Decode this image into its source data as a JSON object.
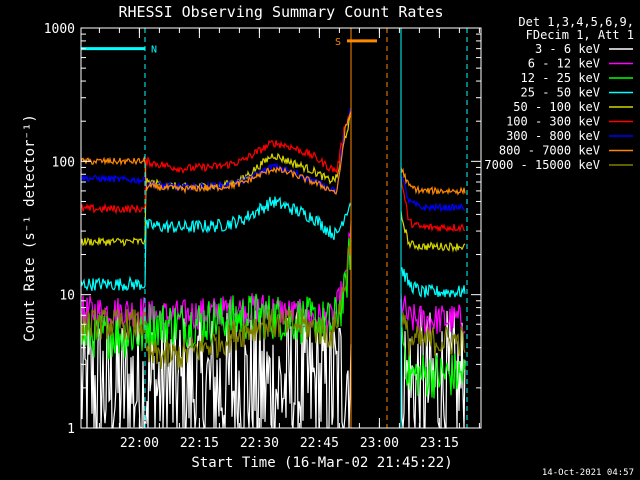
{
  "chart_data": {
    "type": "line",
    "title": "RHESSI Observing Summary Count Rates",
    "xlabel": "Start Time (16-Mar-02 21:45:22)",
    "ylabel": "Count Rate (s⁻¹ detector⁻¹)",
    "y_scale": "log",
    "ylim": [
      1,
      1000
    ],
    "y_ticks": [
      "1",
      "10",
      "100",
      "1000"
    ],
    "x_unit": "minutes after 21:45:22",
    "xlim": [
      0,
      100
    ],
    "x_ticks": [
      "22:00",
      "22:15",
      "22:30",
      "22:45",
      "23:00",
      "23:15"
    ],
    "x_tick_values": [
      14.6,
      29.6,
      44.6,
      59.6,
      74.6,
      89.6
    ],
    "legend_title_1": "Det 1,3,4,5,6,9,",
    "legend_title_2": "FDecim 1, Att 1",
    "legend_position": "right",
    "timestamp": "14-Oct-2021 04:57",
    "markers": [
      {
        "label": "N",
        "color": "#00ffff",
        "x_start": 0,
        "x_end": 16.0,
        "level": 700
      },
      {
        "label": "S",
        "color": "#ff8800",
        "x_start": 66.5,
        "x_end": 74.0,
        "level": 800
      }
    ],
    "vlines": [
      {
        "x": 16.0,
        "color": "#00ffff",
        "dashed": true
      },
      {
        "x": 67.5,
        "color": "#ff8800",
        "dashed": false
      },
      {
        "x": 76.5,
        "color": "#ff8800",
        "dashed": true
      },
      {
        "x": 80.0,
        "color": "#00ffff",
        "dashed": false
      },
      {
        "x": 96.5,
        "color": "#00ffff",
        "dashed": true
      }
    ],
    "gaps": [
      [
        67.6,
        79.9
      ]
    ],
    "series": [
      {
        "name": "3 - 6 keV",
        "color": "#ffffff",
        "x": [
          0,
          16.1,
          25,
          35,
          45,
          55,
          63,
          66,
          67.5,
          80,
          82,
          90,
          96
        ],
        "y": [
          2,
          2,
          2,
          2,
          2,
          2,
          2,
          2.5,
          3,
          3,
          2,
          2,
          2
        ],
        "noise": 0.6
      },
      {
        "name": "6 - 12 keV",
        "color": "#ff00ff",
        "x": [
          0,
          16,
          16.1,
          25,
          35,
          45,
          55,
          63,
          66,
          67.5,
          80,
          82,
          90,
          96
        ],
        "y": [
          7.5,
          7.5,
          7,
          7,
          7.5,
          8,
          7,
          6.5,
          12,
          30,
          9,
          6.5,
          6.5,
          6.5
        ],
        "noise": 0.12
      },
      {
        "name": "12 - 25 keV",
        "color": "#00ff00",
        "x": [
          0,
          16,
          16.1,
          25,
          35,
          45,
          55,
          63,
          66,
          67.5,
          80,
          82,
          90,
          96
        ],
        "y": [
          5,
          5,
          6,
          6,
          6.5,
          7,
          6.5,
          6,
          10,
          25,
          6,
          2.5,
          2.5,
          2.5
        ],
        "noise": 0.18
      },
      {
        "name": "25 - 50 keV",
        "color": "#00ffff",
        "x": [
          0,
          16,
          16.1,
          25,
          35,
          40,
          48,
          52,
          58,
          62,
          64,
          66,
          67.5,
          80,
          82,
          85,
          96
        ],
        "y": [
          12,
          12,
          33,
          32,
          33,
          36,
          50,
          45,
          38,
          30,
          28,
          40,
          50,
          16,
          12,
          10.5,
          10.5
        ],
        "noise": 0.05
      },
      {
        "name": "50 - 100 keV",
        "color": "#d4d400",
        "x": [
          0,
          16,
          16.1,
          25,
          35,
          40,
          48,
          52,
          58,
          62,
          64,
          66,
          67.5,
          80,
          82,
          85,
          96
        ],
        "y": [
          25,
          25,
          70,
          64,
          66,
          72,
          112,
          100,
          85,
          72,
          75,
          150,
          220,
          40,
          24,
          23,
          23
        ],
        "noise": 0.03
      },
      {
        "name": "100 - 300 keV",
        "color": "#ff0000",
        "x": [
          0,
          16,
          16.1,
          25,
          35,
          40,
          48,
          52,
          58,
          62,
          64,
          66,
          67.5,
          80,
          82,
          85,
          96
        ],
        "y": [
          44,
          44,
          100,
          88,
          92,
          100,
          138,
          130,
          110,
          90,
          85,
          190,
          230,
          75,
          35,
          32,
          32
        ],
        "noise": 0.03
      },
      {
        "name": "300 - 800 keV",
        "color": "#0000ff",
        "x": [
          0,
          16,
          16.1,
          25,
          35,
          40,
          48,
          52,
          58,
          62,
          64,
          66,
          67.5,
          80,
          82,
          85,
          96
        ],
        "y": [
          75,
          72,
          68,
          64,
          66,
          70,
          92,
          85,
          72,
          64,
          60,
          180,
          250,
          80,
          50,
          45,
          45
        ],
        "noise": 0.025
      },
      {
        "name": "800 - 7000 keV",
        "color": "#ff8800",
        "x": [
          0,
          16,
          16.1,
          25,
          35,
          40,
          48,
          52,
          58,
          62,
          64,
          66,
          67.5,
          80,
          82,
          85,
          96
        ],
        "y": [
          100,
          100,
          65,
          62,
          64,
          68,
          88,
          82,
          70,
          62,
          58,
          170,
          240,
          90,
          65,
          60,
          60
        ],
        "noise": 0.025
      },
      {
        "name": "7000 - 15000 keV",
        "color": "#808000",
        "x": [
          0,
          16,
          16.1,
          25,
          35,
          45,
          55,
          63,
          66,
          67.5,
          80,
          82,
          90,
          96
        ],
        "y": [
          6,
          6,
          3.5,
          3.5,
          4.5,
          6,
          6,
          5,
          12,
          30,
          7,
          4.5,
          4.5,
          4.5
        ],
        "noise": 0.12
      }
    ]
  }
}
